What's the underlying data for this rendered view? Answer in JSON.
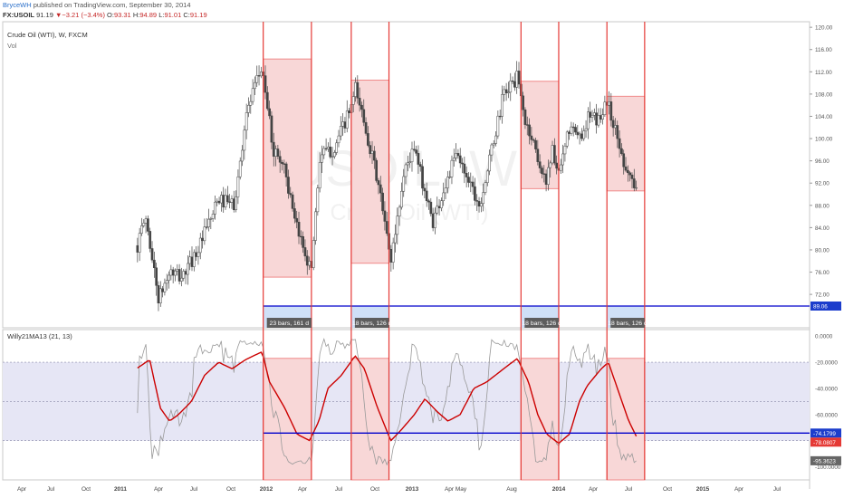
{
  "header": {
    "user": "BryceWH",
    "published": "published on TradingView.com, September 30, 2014"
  },
  "quote": {
    "symbol": "FX:USOIL",
    "last": "91.19",
    "arrow": "▼",
    "change": "−3.21 (−3.4%)",
    "o_label": "O:",
    "o": "93.31",
    "h_label": "H:",
    "h": "94.89",
    "l_label": "L:",
    "l": "91.01",
    "c_label": "C:",
    "c": "91.19"
  },
  "legend": {
    "main": "Crude Oil (WTI), W, FXCM",
    "vol": "Vol",
    "indicator": "Willy21MA13 (21, 13)"
  },
  "watermark": {
    "symbol": "USOIL, W",
    "name": "Crude Oil (WTI)"
  },
  "colors": {
    "up": "#3c3c3c",
    "down": "#3c3c3c",
    "upFill": "#ffffff",
    "zone": "#f8d7d7",
    "zoneBorder": "#e53935",
    "blueLine": "#0000cc",
    "willyLine": "#999999",
    "maLine": "#cc0000",
    "band": "#e6e6f5",
    "badge": "#5d5d5d",
    "priceBadge": "#1c3dcc",
    "redBadge": "#e53935",
    "grayBadge": "#666666"
  },
  "chart_data": {
    "type": "candlestick",
    "interval": "W",
    "price_axis": {
      "min": 66,
      "max": 121,
      "ticks": [
        "120.00",
        "116.00",
        "112.00",
        "108.00",
        "104.00",
        "100.00",
        "96.00",
        "92.00",
        "88.00",
        "84.00",
        "80.00",
        "76.00",
        "72.00"
      ]
    },
    "time_axis": {
      "labels": [
        "Apr",
        "Jul",
        "Oct",
        "2011",
        "Apr",
        "Jul",
        "Oct",
        "2012",
        "Apr",
        "Jul",
        "Oct",
        "2013",
        "Apr",
        "May",
        "Aug",
        "2014",
        "Apr",
        "Jul",
        "Oct",
        "2015",
        "Apr",
        "Jul"
      ],
      "bold": [
        "2011",
        "2012",
        "2013",
        "2014",
        "2015"
      ]
    },
    "waypoints": [
      [
        "2010-03-01",
        80
      ],
      [
        "2010-04-01",
        86
      ],
      [
        "2010-05-15",
        71
      ],
      [
        "2010-06-20",
        76
      ],
      [
        "2010-08-01",
        75
      ],
      [
        "2010-10-01",
        81
      ],
      [
        "2010-12-01",
        89
      ],
      [
        "2011-01-25",
        88
      ],
      [
        "2011-03-01",
        104
      ],
      [
        "2011-04-25",
        113
      ],
      [
        "2011-06-01",
        98
      ],
      [
        "2011-07-10",
        95
      ],
      [
        "2011-08-10",
        85
      ],
      [
        "2011-09-15",
        80
      ],
      [
        "2011-10-05",
        76
      ],
      [
        "2011-11-05",
        97
      ],
      [
        "2011-12-20",
        98
      ],
      [
        "2012-02-20",
        106
      ],
      [
        "2012-03-01",
        109
      ],
      [
        "2012-04-01",
        103
      ],
      [
        "2012-05-20",
        91
      ],
      [
        "2012-06-28",
        78
      ],
      [
        "2012-08-15",
        95
      ],
      [
        "2012-09-15",
        98
      ],
      [
        "2012-11-15",
        85
      ],
      [
        "2013-01-05",
        93
      ],
      [
        "2013-02-01",
        97
      ],
      [
        "2013-03-15",
        93
      ],
      [
        "2013-04-20",
        88
      ],
      [
        "2013-05-20",
        95
      ],
      [
        "2013-07-10",
        108
      ],
      [
        "2013-08-25",
        111
      ],
      [
        "2013-09-20",
        103
      ],
      [
        "2013-10-20",
        99
      ],
      [
        "2013-11-25",
        92
      ],
      [
        "2013-12-20",
        98
      ],
      [
        "2014-01-10",
        93
      ],
      [
        "2014-02-15",
        102
      ],
      [
        "2014-03-20",
        100
      ],
      [
        "2014-04-20",
        104
      ],
      [
        "2014-05-20",
        103
      ],
      [
        "2014-06-20",
        107
      ],
      [
        "2014-07-20",
        101
      ],
      [
        "2014-08-15",
        96
      ],
      [
        "2014-09-15",
        92
      ],
      [
        "2014-09-29",
        91.19
      ]
    ],
    "zones": [
      {
        "start": "2011-04-29",
        "end": "2011-10-07",
        "high": 114.3,
        "low": 75.1,
        "badge": "23 bars, 161 d"
      },
      {
        "start": "2012-02-17",
        "end": "2012-06-22",
        "high": 110.5,
        "low": 77.6,
        "badge": "18 bars, 126 d"
      },
      {
        "start": "2013-09-06",
        "end": "2014-01-10",
        "high": 110.3,
        "low": 91.0,
        "badge": "18 bars, 126 d"
      },
      {
        "start": "2014-06-20",
        "end": "2014-10-24",
        "high": 107.6,
        "low": 90.6,
        "badge": "18 bars, 126 d"
      }
    ],
    "zone_lines": [
      "2011-04-29",
      "2011-10-07",
      "2012-02-17",
      "2012-06-22",
      "2013-09-06",
      "2014-01-10",
      "2014-06-20",
      "2014-10-24"
    ],
    "price_level": {
      "value": "89.06"
    },
    "indicator": {
      "name": "Willy21MA13",
      "axis": {
        "min": -110,
        "max": 5,
        "ticks": [
          "0.0000",
          "-20.0000",
          "-40.0000",
          "-60.0000",
          "-80.0000",
          "-100.0000"
        ]
      },
      "levels": [
        -20,
        -50,
        -80
      ],
      "ma_waypoints": [
        [
          "2010-03-01",
          -25
        ],
        [
          "2010-04-15",
          -18
        ],
        [
          "2010-05-20",
          -55
        ],
        [
          "2010-06-20",
          -65
        ],
        [
          "2010-07-20",
          -60
        ],
        [
          "2010-09-01",
          -50
        ],
        [
          "2010-10-15",
          -30
        ],
        [
          "2010-12-01",
          -20
        ],
        [
          "2011-01-15",
          -25
        ],
        [
          "2011-03-01",
          -18
        ],
        [
          "2011-04-25",
          -12
        ],
        [
          "2011-05-20",
          -35
        ],
        [
          "2011-07-10",
          -55
        ],
        [
          "2011-08-20",
          -75
        ],
        [
          "2011-10-01",
          -80
        ],
        [
          "2011-11-01",
          -65
        ],
        [
          "2011-12-01",
          -40
        ],
        [
          "2012-01-15",
          -30
        ],
        [
          "2012-03-01",
          -15
        ],
        [
          "2012-04-01",
          -25
        ],
        [
          "2012-05-15",
          -55
        ],
        [
          "2012-06-28",
          -80
        ],
        [
          "2012-08-01",
          -72
        ],
        [
          "2012-09-15",
          -60
        ],
        [
          "2012-10-20",
          -48
        ],
        [
          "2012-12-01",
          -58
        ],
        [
          "2013-01-05",
          -65
        ],
        [
          "2013-02-15",
          -60
        ],
        [
          "2013-04-01",
          -40
        ],
        [
          "2013-05-15",
          -35
        ],
        [
          "2013-07-10",
          -25
        ],
        [
          "2013-08-25",
          -17
        ],
        [
          "2013-10-01",
          -35
        ],
        [
          "2013-11-01",
          -60
        ],
        [
          "2013-12-01",
          -75
        ],
        [
          "2014-01-10",
          -82
        ],
        [
          "2014-02-15",
          -75
        ],
        [
          "2014-03-20",
          -50
        ],
        [
          "2014-04-15",
          -38
        ],
        [
          "2014-06-01",
          -25
        ],
        [
          "2014-06-25",
          -20
        ],
        [
          "2014-07-25",
          -40
        ],
        [
          "2014-09-01",
          -65
        ],
        [
          "2014-09-29",
          -78
        ]
      ],
      "ma_badge": "-74.1799",
      "ma_last_badge": "-78.0807",
      "willy_last_badge": "-95.3623"
    }
  }
}
